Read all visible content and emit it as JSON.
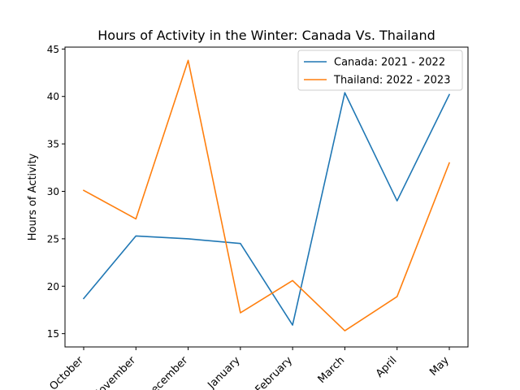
{
  "chart_data": {
    "type": "line",
    "title": "Hours of Activity in the Winter: Canada Vs. Thailand",
    "xlabel": "",
    "ylabel": "Hours of Activity",
    "categories": [
      "October",
      "November",
      "December",
      "January",
      "February",
      "March",
      "April",
      "May"
    ],
    "ylim": [
      13.6,
      45.2
    ],
    "yticks": [
      15,
      20,
      25,
      30,
      35,
      40,
      45
    ],
    "grid": false,
    "legend_position": "top-right",
    "series": [
      {
        "name": "Canada: 2021 - 2022",
        "color": "#1f77b4",
        "values": [
          18.7,
          25.3,
          25.0,
          24.5,
          15.9,
          40.4,
          29.0,
          40.2
        ]
      },
      {
        "name": "Thailand: 2022 - 2023",
        "color": "#ff7f0e",
        "values": [
          30.1,
          27.1,
          43.8,
          17.2,
          20.6,
          15.3,
          18.9,
          33.0
        ]
      }
    ]
  }
}
